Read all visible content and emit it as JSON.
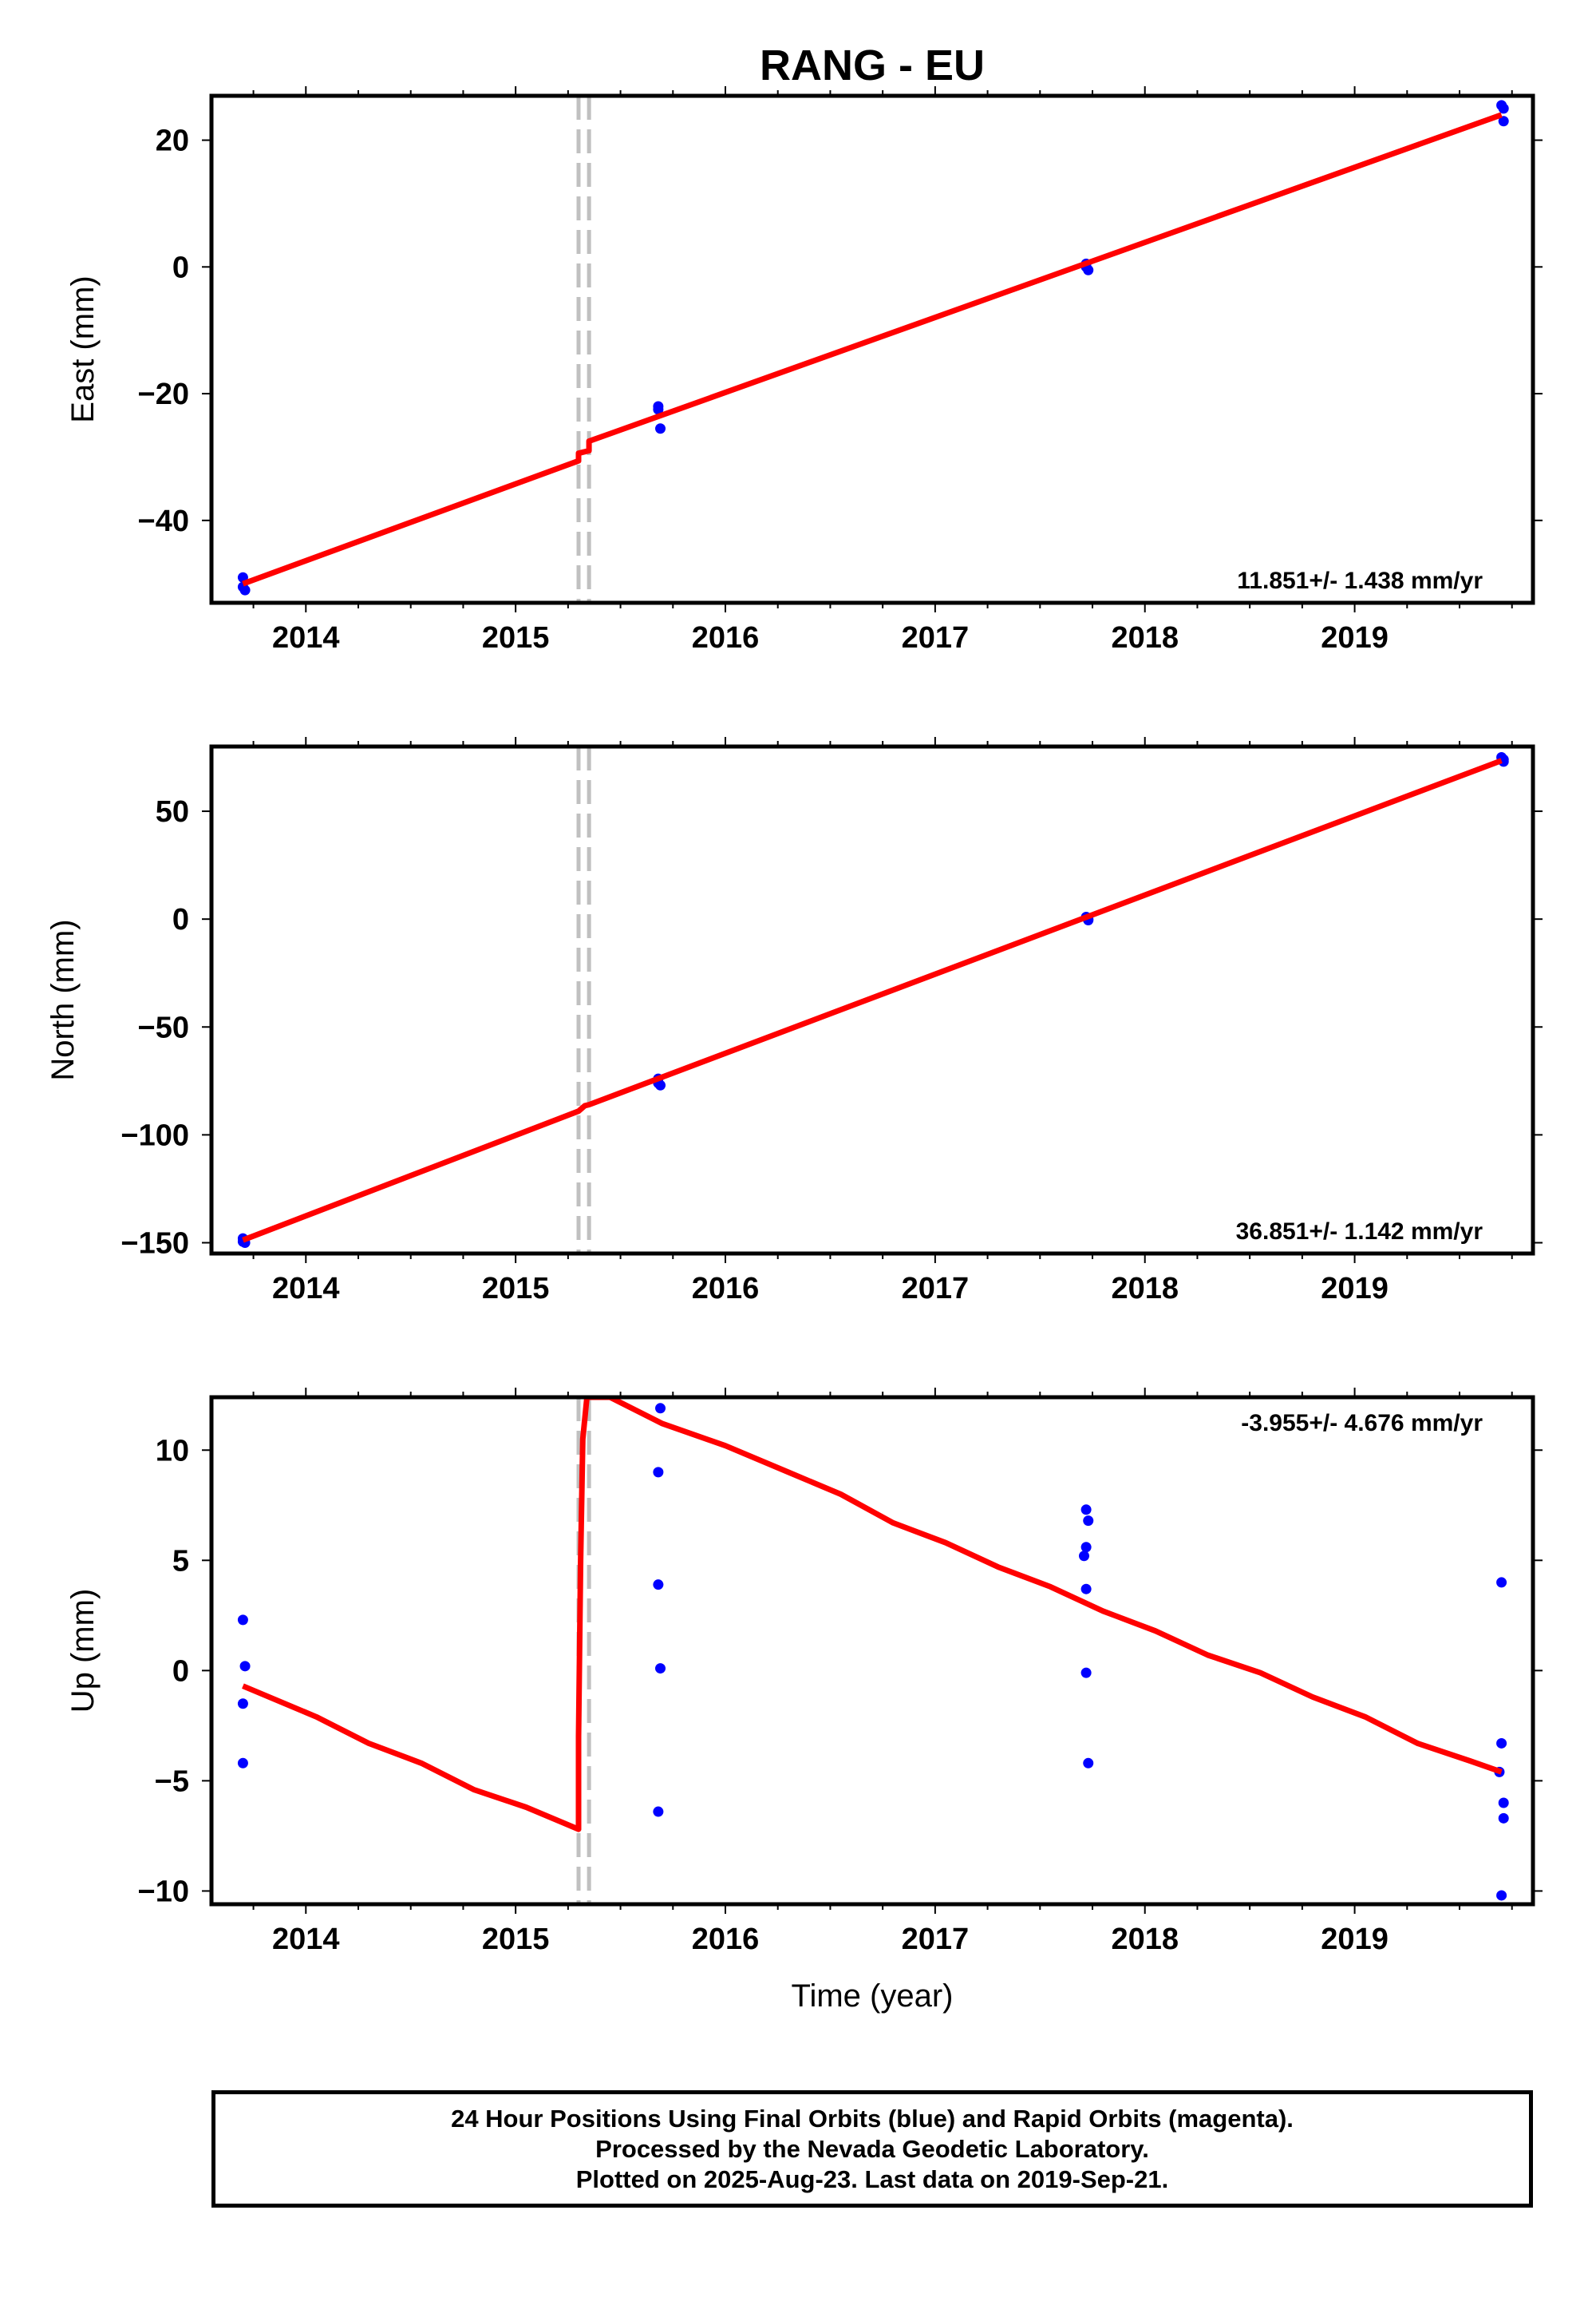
{
  "title": "RANG - EU",
  "xlabel": "Time (year)",
  "colors": {
    "final": "#0000ff",
    "model": "#ff0000",
    "offset": "#c0c0c0",
    "frame": "#000000"
  },
  "chart_data": [
    {
      "type": "scatter",
      "ylabel": "East (mm)",
      "rate": "11.851+/- 1.438 mm/yr",
      "rate_position": "bottom-right",
      "xlim": [
        2013.55,
        2019.85
      ],
      "ylim": [
        -53,
        27
      ],
      "yticks": [
        -40,
        -20,
        0,
        20
      ],
      "ytick_labels": [
        "−40",
        "−20",
        "0",
        "20"
      ],
      "xticks": [
        2014,
        2015,
        2016,
        2017,
        2018,
        2019
      ],
      "offset_lines": [
        2015.3,
        2015.35
      ],
      "points": [
        {
          "x": 2013.7,
          "y": -49.0
        },
        {
          "x": 2013.7,
          "y": -50.5
        },
        {
          "x": 2013.71,
          "y": -51.0
        },
        {
          "x": 2015.68,
          "y": -22.0
        },
        {
          "x": 2015.68,
          "y": -22.5
        },
        {
          "x": 2015.69,
          "y": -25.5
        },
        {
          "x": 2017.72,
          "y": 0.5
        },
        {
          "x": 2017.72,
          "y": 0.0
        },
        {
          "x": 2017.73,
          "y": -0.5
        },
        {
          "x": 2019.7,
          "y": 25.5
        },
        {
          "x": 2019.71,
          "y": 25.0
        },
        {
          "x": 2019.71,
          "y": 23.0
        }
      ],
      "model": [
        {
          "x": 2013.7,
          "y": -50.0
        },
        {
          "x": 2015.3,
          "y": -30.6
        },
        {
          "x": 2015.3,
          "y": -29.4
        },
        {
          "x": 2015.35,
          "y": -29.0
        },
        {
          "x": 2015.35,
          "y": -27.5
        },
        {
          "x": 2019.7,
          "y": 24.0
        }
      ]
    },
    {
      "type": "scatter",
      "ylabel": "North (mm)",
      "rate": "36.851+/- 1.142 mm/yr",
      "rate_position": "bottom-right",
      "xlim": [
        2013.55,
        2019.85
      ],
      "ylim": [
        -155,
        80
      ],
      "yticks": [
        -150,
        -100,
        -50,
        0,
        50
      ],
      "ytick_labels": [
        "−150",
        "−100",
        "−50",
        "0",
        "50"
      ],
      "xticks": [
        2014,
        2015,
        2016,
        2017,
        2018,
        2019
      ],
      "offset_lines": [
        2015.3,
        2015.35
      ],
      "points": [
        {
          "x": 2013.7,
          "y": -148.0
        },
        {
          "x": 2013.7,
          "y": -149.5
        },
        {
          "x": 2013.71,
          "y": -150.0
        },
        {
          "x": 2015.68,
          "y": -74.0
        },
        {
          "x": 2015.68,
          "y": -76.0
        },
        {
          "x": 2015.69,
          "y": -77.0
        },
        {
          "x": 2017.72,
          "y": 1.0
        },
        {
          "x": 2017.73,
          "y": 0.0
        },
        {
          "x": 2017.73,
          "y": -0.5
        },
        {
          "x": 2019.7,
          "y": 75.0
        },
        {
          "x": 2019.71,
          "y": 74.0
        },
        {
          "x": 2019.71,
          "y": 73.0
        }
      ],
      "model": [
        {
          "x": 2013.7,
          "y": -148.8
        },
        {
          "x": 2015.3,
          "y": -89.0
        },
        {
          "x": 2015.33,
          "y": -86.5
        },
        {
          "x": 2015.35,
          "y": -86.0
        },
        {
          "x": 2019.7,
          "y": 73.5
        }
      ]
    },
    {
      "type": "scatter",
      "ylabel": "Up (mm)",
      "rate": "-3.955+/- 4.676 mm/yr",
      "rate_position": "top-right",
      "xlim": [
        2013.55,
        2019.85
      ],
      "ylim": [
        -10.6,
        12.4
      ],
      "yticks": [
        -10,
        -5,
        0,
        5,
        10
      ],
      "ytick_labels": [
        "−10",
        "−5",
        "0",
        "5",
        "10"
      ],
      "xticks": [
        2014,
        2015,
        2016,
        2017,
        2018,
        2019
      ],
      "offset_lines": [
        2015.3,
        2015.35
      ],
      "points": [
        {
          "x": 2013.7,
          "y": 2.3
        },
        {
          "x": 2013.71,
          "y": 0.2
        },
        {
          "x": 2013.7,
          "y": -1.5
        },
        {
          "x": 2013.7,
          "y": -4.2
        },
        {
          "x": 2015.69,
          "y": 11.9
        },
        {
          "x": 2015.68,
          "y": 9.0
        },
        {
          "x": 2015.68,
          "y": 3.9
        },
        {
          "x": 2015.69,
          "y": 0.1
        },
        {
          "x": 2015.68,
          "y": -6.4
        },
        {
          "x": 2017.72,
          "y": 7.3
        },
        {
          "x": 2017.73,
          "y": 6.8
        },
        {
          "x": 2017.72,
          "y": 5.6
        },
        {
          "x": 2017.71,
          "y": 5.2
        },
        {
          "x": 2017.72,
          "y": 3.7
        },
        {
          "x": 2017.72,
          "y": -0.1
        },
        {
          "x": 2017.73,
          "y": -4.2
        },
        {
          "x": 2019.7,
          "y": 4.0
        },
        {
          "x": 2019.7,
          "y": -3.3
        },
        {
          "x": 2019.69,
          "y": -4.6
        },
        {
          "x": 2019.71,
          "y": -6.0
        },
        {
          "x": 2019.71,
          "y": -6.7
        },
        {
          "x": 2019.7,
          "y": -10.2
        }
      ],
      "model": [
        {
          "x": 2013.7,
          "y": -0.7
        },
        {
          "x": 2014.05,
          "y": -2.1
        },
        {
          "x": 2014.3,
          "y": -3.3
        },
        {
          "x": 2014.55,
          "y": -4.2
        },
        {
          "x": 2014.8,
          "y": -5.4
        },
        {
          "x": 2015.05,
          "y": -6.2
        },
        {
          "x": 2015.3,
          "y": -7.2
        },
        {
          "x": 2015.3,
          "y": -3.0
        },
        {
          "x": 2015.31,
          "y": 5.0
        },
        {
          "x": 2015.32,
          "y": 10.5
        },
        {
          "x": 2015.34,
          "y": 12.4
        },
        {
          "x": 2015.45,
          "y": 12.4
        },
        {
          "x": 2015.7,
          "y": 11.2
        },
        {
          "x": 2016.0,
          "y": 10.2
        },
        {
          "x": 2016.3,
          "y": 9.0
        },
        {
          "x": 2016.55,
          "y": 8.0
        },
        {
          "x": 2016.8,
          "y": 6.7
        },
        {
          "x": 2017.05,
          "y": 5.8
        },
        {
          "x": 2017.3,
          "y": 4.7
        },
        {
          "x": 2017.55,
          "y": 3.8
        },
        {
          "x": 2017.8,
          "y": 2.7
        },
        {
          "x": 2018.05,
          "y": 1.8
        },
        {
          "x": 2018.3,
          "y": 0.7
        },
        {
          "x": 2018.55,
          "y": -0.1
        },
        {
          "x": 2018.8,
          "y": -1.2
        },
        {
          "x": 2019.05,
          "y": -2.1
        },
        {
          "x": 2019.3,
          "y": -3.3
        },
        {
          "x": 2019.55,
          "y": -4.1
        },
        {
          "x": 2019.7,
          "y": -4.6
        }
      ]
    }
  ],
  "footer": {
    "line1": "24 Hour Positions Using Final Orbits (blue) and Rapid Orbits (magenta).",
    "line2": "Processed by the Nevada Geodetic Laboratory.",
    "line3": "Plotted on 2025-Aug-23. Last data on 2019-Sep-21."
  }
}
